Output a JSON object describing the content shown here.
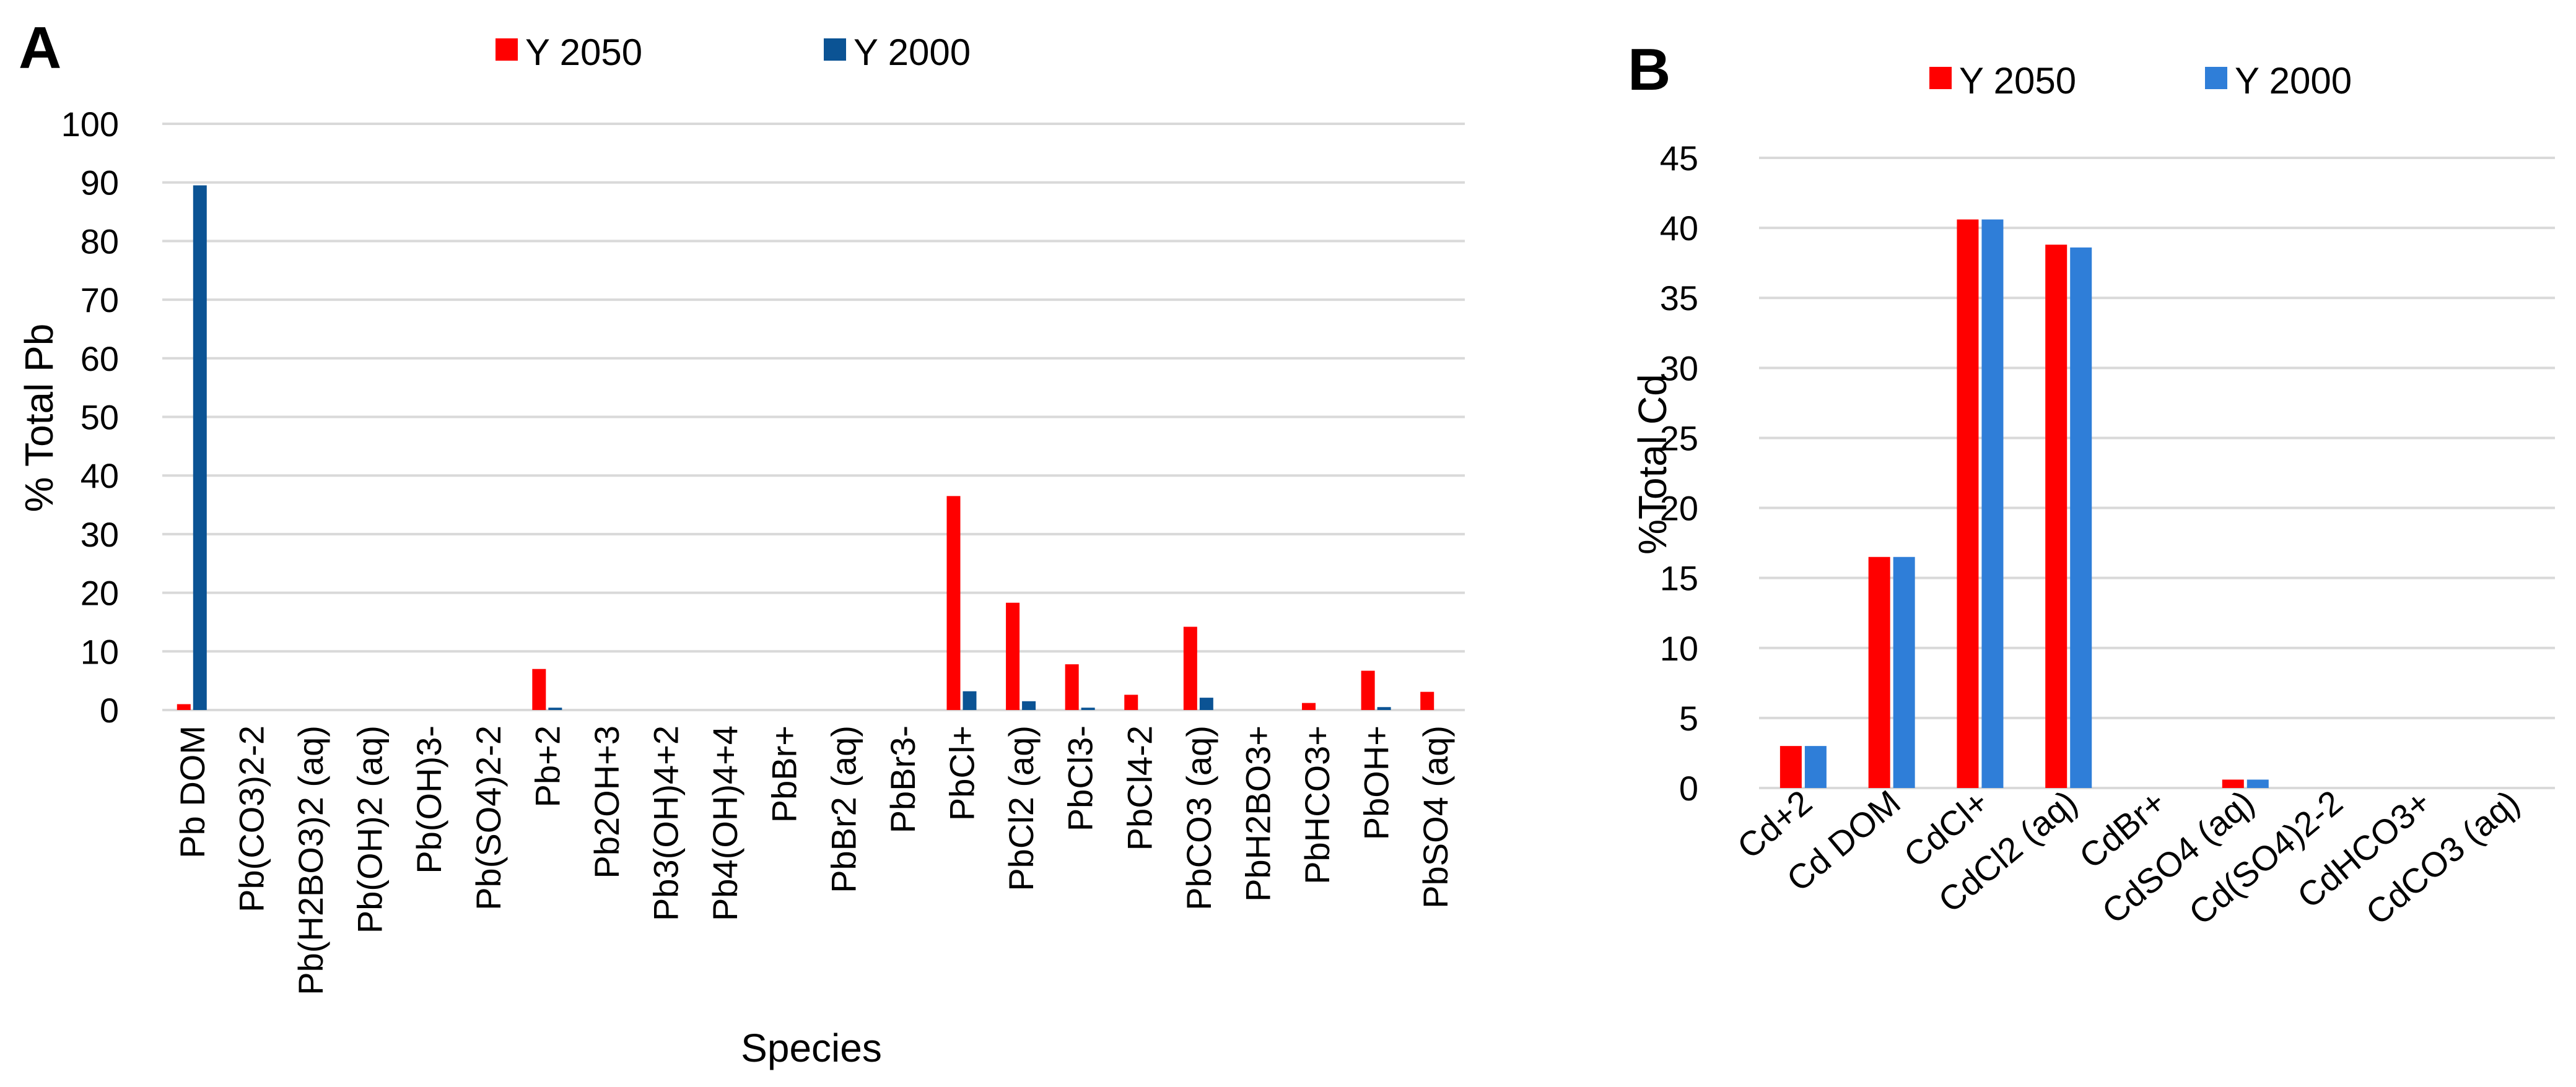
{
  "chart_data": [
    {
      "panel": "A",
      "type": "bar",
      "title": "",
      "xlabel": "Species",
      "ylabel": "% Total Pb",
      "ylim": [
        0,
        100
      ],
      "yticks": [
        0,
        10,
        20,
        30,
        40,
        50,
        60,
        70,
        80,
        90,
        100
      ],
      "grid": true,
      "legend_position": "top",
      "categories": [
        "Pb DOM",
        "Pb(CO3)2-2",
        "Pb(H2BO3)2 (aq)",
        "Pb(OH)2 (aq)",
        "Pb(OH)3-",
        "Pb(SO4)2-2",
        "Pb+2",
        "Pb2OH+3",
        "Pb3(OH)4+2",
        "Pb4(OH)4+4",
        "PbBr+",
        "PbBr2 (aq)",
        "PbBr3-",
        "PbCl+",
        "PbCl2 (aq)",
        "PbCl3-",
        "PbCl4-2",
        "PbCO3 (aq)",
        "PbH2BO3+",
        "PbHCO3+",
        "PbOH+",
        "PbSO4 (aq)"
      ],
      "series": [
        {
          "name": "Y 2050",
          "color": "#ff0000",
          "values": [
            1.0,
            0,
            0,
            0,
            0,
            0,
            7.0,
            0,
            0,
            0,
            0,
            0,
            0,
            36.5,
            18.3,
            7.8,
            2.6,
            14.2,
            0,
            1.2,
            6.7,
            3.1
          ]
        },
        {
          "name": "Y 2000",
          "color": "#0b5394",
          "values": [
            89.5,
            0,
            0,
            0,
            0,
            0,
            0.4,
            0,
            0,
            0,
            0,
            0,
            0,
            3.2,
            1.5,
            0.4,
            0,
            2.1,
            0,
            0,
            0.5,
            0
          ]
        }
      ]
    },
    {
      "panel": "B",
      "type": "bar",
      "title": "",
      "xlabel": "",
      "ylabel": "%Total Cd",
      "ylim": [
        0,
        45
      ],
      "yticks": [
        0,
        5,
        10,
        15,
        20,
        25,
        30,
        35,
        40,
        45
      ],
      "grid": true,
      "legend_position": "top",
      "categories": [
        "Cd+2",
        "Cd DOM",
        "CdCl+",
        "CdCl2 (aq)",
        "CdBr+",
        "CdSO4 (aq)",
        "Cd(SO4)2-2",
        "CdHCO3+",
        "CdCO3 (aq)"
      ],
      "series": [
        {
          "name": "Y 2050",
          "color": "#ff0000",
          "values": [
            3.0,
            16.5,
            40.6,
            38.8,
            0,
            0.6,
            0,
            0,
            0
          ]
        },
        {
          "name": "Y 2000",
          "color": "#2f7ed8",
          "values": [
            3.0,
            16.5,
            40.6,
            38.6,
            0,
            0.6,
            0,
            0,
            0
          ]
        }
      ]
    }
  ]
}
